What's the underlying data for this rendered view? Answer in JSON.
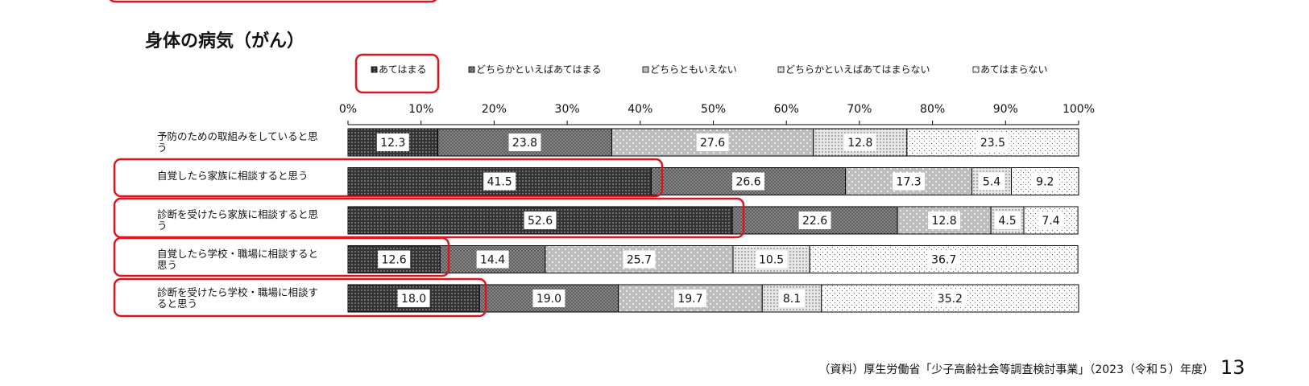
{
  "chart_data": {
    "type": "stacked-bar-horizontal",
    "title": "身体の病気（がん）",
    "categories": [
      "予防のための取組みをしていると思う",
      "自覚したら家族に相談すると思う",
      "診断を受けたら家族に相談すると思う",
      "自覚したら学校・職場に相談すると思う",
      "診断を受けたら学校・職場に相談すると思う"
    ],
    "series": [
      {
        "name": "あてはまる",
        "color": "#333333",
        "values": [
          12.3,
          41.5,
          52.6,
          12.6,
          18.0
        ],
        "value_labels": [
          "12.3",
          "41.5",
          "52.6",
          "12.6",
          "18.0"
        ]
      },
      {
        "name": "どちらかといえばあてはまる",
        "color": "#8c8c8c",
        "values": [
          23.8,
          26.6,
          22.6,
          14.4,
          19.0
        ],
        "value_labels": [
          "23.8",
          "26.6",
          "22.6",
          "14.4",
          "19.0"
        ]
      },
      {
        "name": "どちらともいえない",
        "color": "#bdbdbd",
        "values": [
          27.6,
          17.3,
          12.8,
          25.7,
          19.7
        ]
      },
      {
        "name": "どちらかといえばあてはまらない",
        "color": "#e6e6e6",
        "values": [
          12.8,
          5.4,
          4.5,
          10.5,
          8.1
        ]
      },
      {
        "name": "あてはまらない",
        "color": "#ffffff",
        "values": [
          23.5,
          9.2,
          7.4,
          36.7,
          35.2
        ]
      }
    ],
    "xlim": [
      0,
      100
    ],
    "xticks": [
      {
        "value": 0,
        "label": "0%"
      },
      {
        "value": 10,
        "label": "10%"
      },
      {
        "value": 20,
        "label": "20%"
      },
      {
        "value": 30,
        "label": "30%"
      },
      {
        "value": 40,
        "label": "40%"
      },
      {
        "value": 50,
        "label": "50%"
      },
      {
        "value": 60,
        "label": "60%"
      },
      {
        "value": 70,
        "label": "70%"
      },
      {
        "value": 80,
        "label": "80%"
      },
      {
        "value": 90,
        "label": "90%"
      },
      {
        "value": 100,
        "label": "100%"
      }
    ],
    "source": "（資料）厚生労働省「少子高齢社会等調査検討事業」（2023（令和５）年度）",
    "page_number": "13"
  }
}
